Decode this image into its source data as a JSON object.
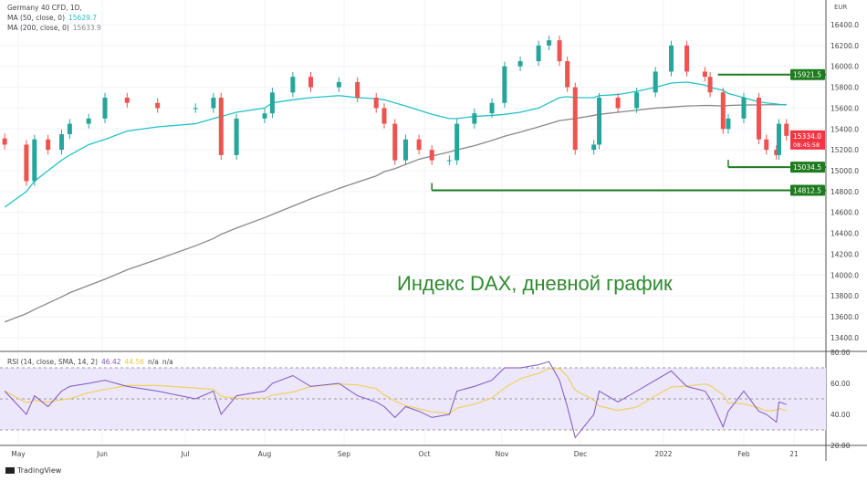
{
  "header": {
    "symbol": "Germany 40 CFD, 1D,",
    "ma50_label": "MA (50, close, 0)",
    "ma50_value": "15629.7",
    "ma200_label": "MA (200, close, 0)",
    "ma200_value": "15633.9",
    "currency": "EUR"
  },
  "rsi_legend": {
    "label": "RSI (14, close, SMA, 14, 2)",
    "value": "46.42",
    "ma_value": "44.56",
    "na1": "n/a",
    "na2": "n/a"
  },
  "annotation": "Индекс DAX, дневной график",
  "footer": {
    "brand": "TradingView"
  },
  "colors": {
    "up": "#26a69a",
    "down": "#ef5350",
    "ma50": "#22c1c8",
    "ma200": "#888888",
    "levels": "#1e7b1e",
    "rsi": "#7e57c2",
    "rsi_ma": "#f0d060",
    "rsi_band": "#ede7fb"
  },
  "chart_data": {
    "type": "candlestick",
    "ylim": [
      13300,
      16500
    ],
    "y_ticks": [
      "16400.0",
      "16200.0",
      "16000.0",
      "15800.0",
      "15600.0",
      "15400.0",
      "15200.0",
      "15000.0",
      "14800.0",
      "14600.0",
      "14400.0",
      "14200.0",
      "14000.0",
      "13800.0",
      "13600.0",
      "13400.0"
    ],
    "x_ticks": [
      {
        "date": "2021-05-01",
        "label": "May"
      },
      {
        "date": "2021-06-01",
        "label": "Jun"
      },
      {
        "date": "2021-07-01",
        "label": "Jul"
      },
      {
        "date": "2021-08-01",
        "label": "Aug"
      },
      {
        "date": "2021-09-01",
        "label": "Sep"
      },
      {
        "date": "2021-10-01",
        "label": "Oct"
      },
      {
        "date": "2021-11-01",
        "label": "Nov"
      },
      {
        "date": "2021-12-01",
        "label": "Dec"
      },
      {
        "date": "2022-01-01",
        "label": "2022"
      },
      {
        "date": "2022-02-01",
        "label": "Feb"
      },
      {
        "date": "2022-02-21",
        "label": "21"
      }
    ],
    "dates": [
      "2021-04-26",
      "2021-05-04",
      "2021-05-07",
      "2021-05-12",
      "2021-05-17",
      "2021-05-20",
      "2021-05-27",
      "2021-06-02",
      "2021-06-10",
      "2021-06-21",
      "2021-07-05",
      "2021-07-12",
      "2021-07-15",
      "2021-07-21",
      "2021-08-01",
      "2021-08-04",
      "2021-08-12",
      "2021-08-19",
      "2021-08-30",
      "2021-09-06",
      "2021-09-13",
      "2021-09-16",
      "2021-09-20",
      "2021-09-24",
      "2021-09-29",
      "2021-10-04",
      "2021-10-11",
      "2021-10-14",
      "2021-10-21",
      "2021-10-28",
      "2021-11-02",
      "2021-11-08",
      "2021-11-15",
      "2021-11-19",
      "2021-11-23",
      "2021-11-26",
      "2021-11-29",
      "2021-12-06",
      "2021-12-08",
      "2021-12-15",
      "2021-12-22",
      "2021-12-29",
      "2022-01-04",
      "2022-01-10",
      "2022-01-17",
      "2022-01-19",
      "2022-01-24",
      "2022-01-26",
      "2022-02-01",
      "2022-02-07",
      "2022-02-10",
      "2022-02-14",
      "2022-02-15",
      "2022-02-18"
    ],
    "close": [
      15250,
      14900,
      15300,
      15200,
      15350,
      15450,
      15500,
      15700,
      15650,
      15600,
      15600,
      15700,
      15150,
      15500,
      15550,
      15750,
      15900,
      15800,
      15850,
      15700,
      15600,
      15450,
      15100,
      15300,
      15200,
      15100,
      15100,
      15450,
      15550,
      15650,
      16000,
      16050,
      16200,
      16250,
      16050,
      15800,
      15200,
      15250,
      15700,
      15600,
      15750,
      15950,
      16200,
      15950,
      15900,
      15750,
      15400,
      15500,
      15700,
      15300,
      15200,
      15150,
      15450,
      15334
    ],
    "ma50": [
      14650,
      14800,
      14900,
      15000,
      15100,
      15150,
      15250,
      15300,
      15380,
      15420,
      15450,
      15500,
      15520,
      15560,
      15600,
      15650,
      15680,
      15700,
      15720,
      15700,
      15690,
      15680,
      15650,
      15620,
      15580,
      15540,
      15500,
      15500,
      15520,
      15530,
      15540,
      15560,
      15600,
      15650,
      15700,
      15710,
      15700,
      15700,
      15720,
      15730,
      15760,
      15800,
      15840,
      15850,
      15820,
      15800,
      15770,
      15740,
      15700,
      15660,
      15650,
      15640,
      15635,
      15630
    ],
    "ma200": [
      13550,
      13630,
      13670,
      13730,
      13790,
      13830,
      13900,
      13960,
      14050,
      14150,
      14280,
      14350,
      14390,
      14450,
      14550,
      14580,
      14660,
      14730,
      14830,
      14890,
      14950,
      14990,
      15020,
      15060,
      15110,
      15140,
      15180,
      15200,
      15240,
      15290,
      15330,
      15370,
      15420,
      15450,
      15480,
      15490,
      15500,
      15530,
      15540,
      15560,
      15580,
      15600,
      15610,
      15620,
      15625,
      15625,
      15620,
      15625,
      15630,
      15630,
      15632,
      15632,
      15633,
      15634
    ],
    "levels": [
      {
        "value": 15921.5,
        "label": "15921.5",
        "from": "2022-01-22"
      },
      {
        "value": 15034.5,
        "label": "15034.5",
        "from": "2022-01-26"
      },
      {
        "value": 14812.5,
        "label": "14812.5",
        "from": "2021-10-04"
      }
    ],
    "last_price": {
      "label": "15334.0",
      "countdown": "08:45:58"
    },
    "rsi": {
      "ylim": [
        20,
        80
      ],
      "y_ticks": [
        "80.00",
        "60.00",
        "40.00",
        "20.00"
      ],
      "bands": [
        70,
        50,
        30
      ],
      "values": [
        55,
        40,
        52,
        45,
        55,
        58,
        60,
        62,
        58,
        55,
        50,
        55,
        40,
        52,
        55,
        60,
        65,
        58,
        60,
        52,
        48,
        45,
        38,
        45,
        42,
        38,
        40,
        55,
        58,
        62,
        70,
        70,
        72,
        74,
        62,
        45,
        25,
        40,
        55,
        48,
        55,
        62,
        68,
        58,
        55,
        50,
        32,
        42,
        55,
        42,
        40,
        35,
        48,
        46.42
      ]
    }
  }
}
